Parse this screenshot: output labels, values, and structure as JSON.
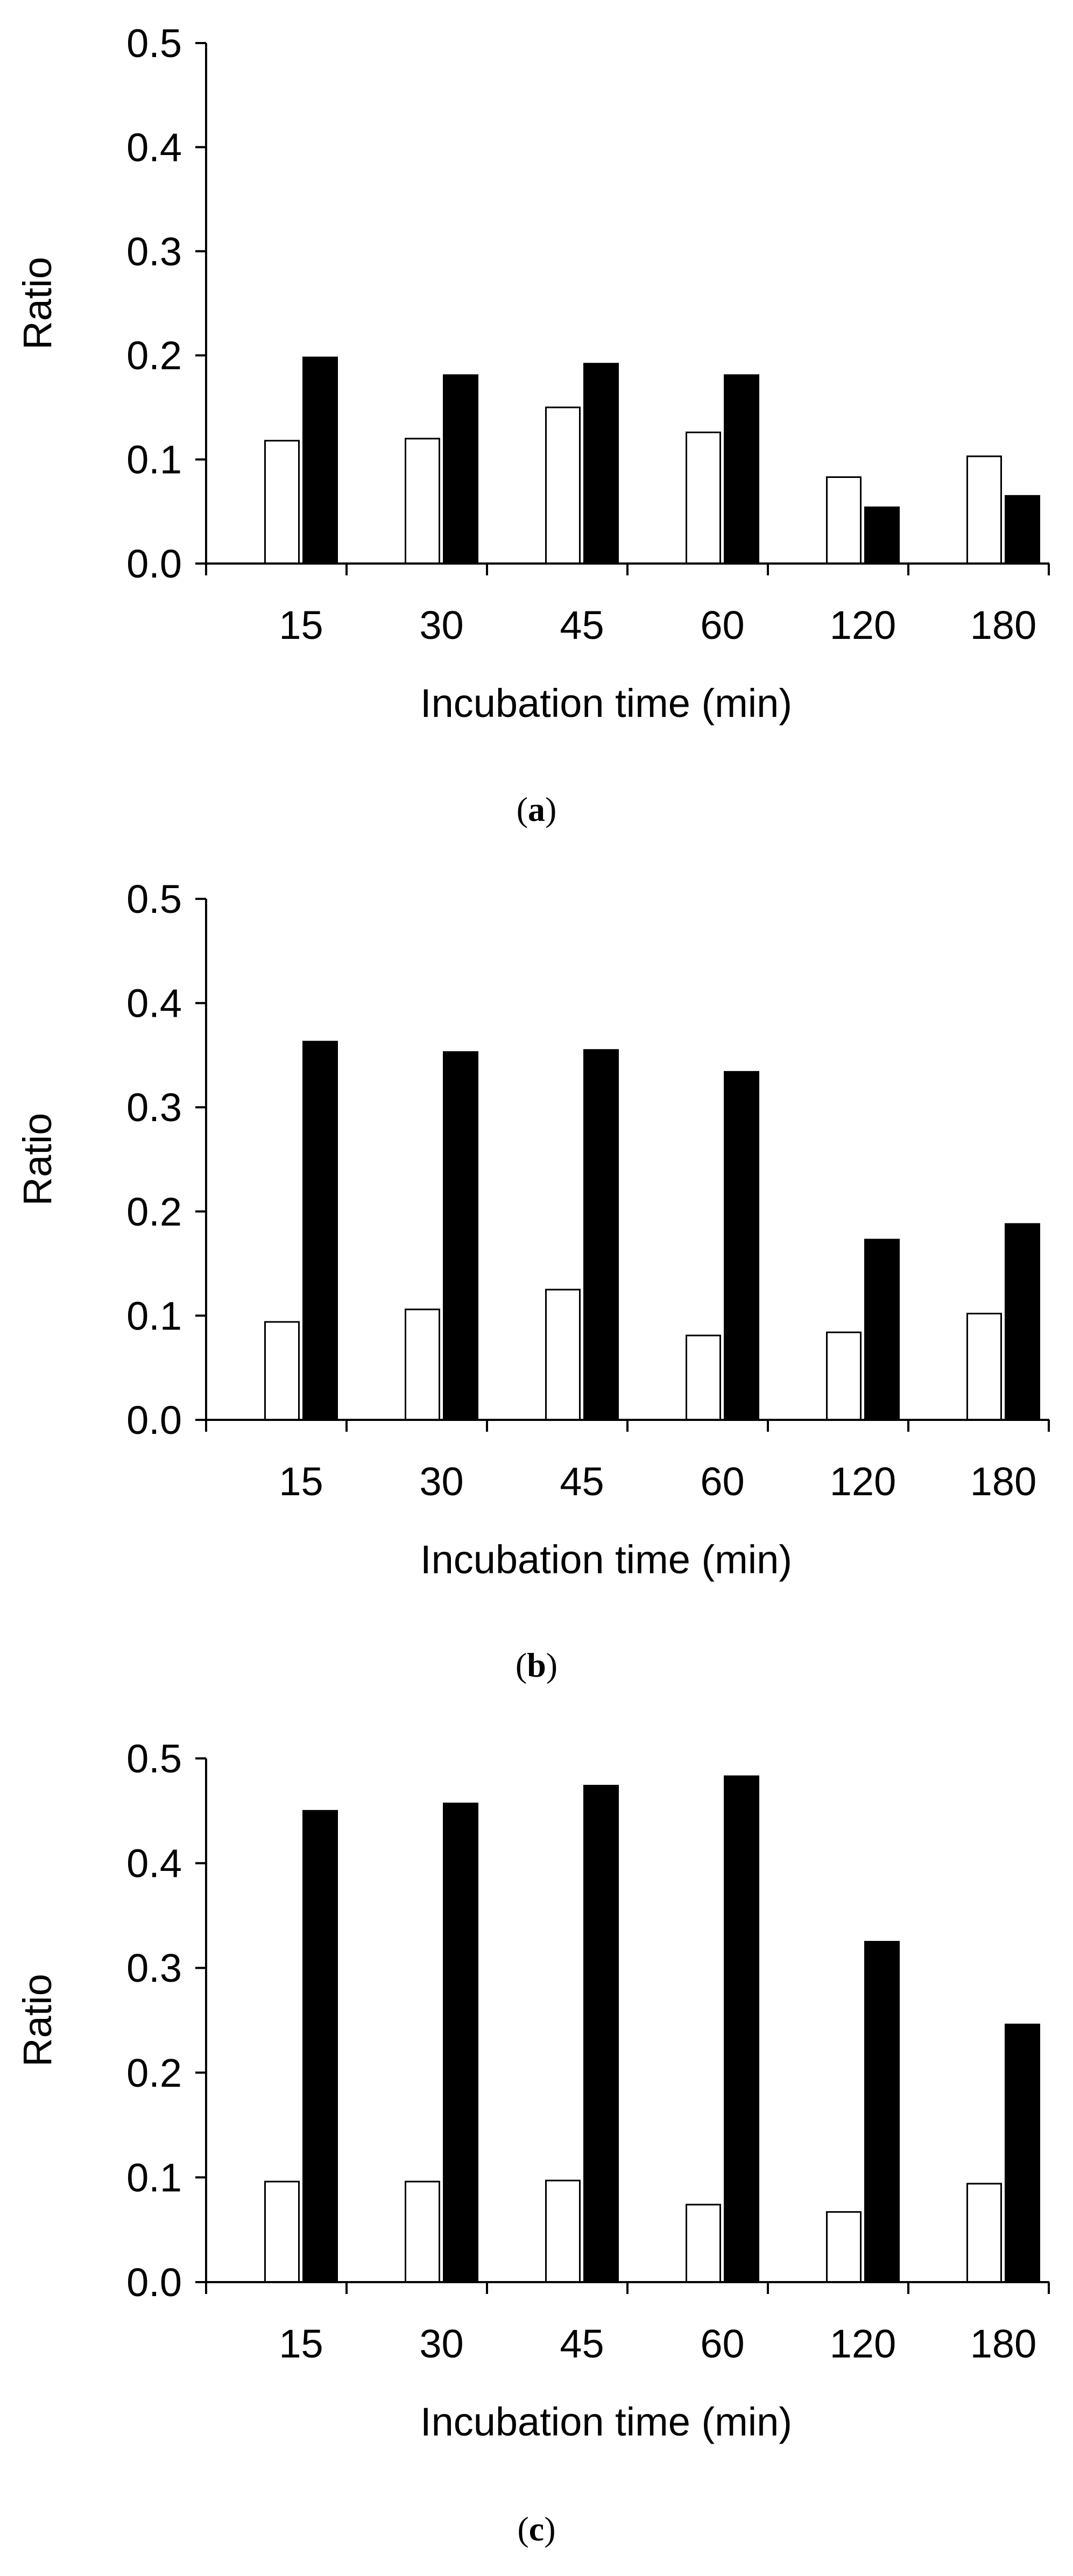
{
  "chart_data": [
    {
      "type": "bar",
      "panel": "a",
      "caption": {
        "open": "(",
        "letter": "a",
        "close": ")"
      },
      "categories": [
        "15",
        "30",
        "45",
        "60",
        "120",
        "180"
      ],
      "series": [
        {
          "name": "open bars",
          "fill": "#ffffff",
          "values": [
            0.118,
            0.12,
            0.15,
            0.126,
            0.083,
            0.103
          ]
        },
        {
          "name": "filled bars",
          "fill": "#000000",
          "values": [
            0.198,
            0.181,
            0.192,
            0.181,
            0.054,
            0.065
          ]
        }
      ],
      "yticks": [
        "0.0",
        "0.1",
        "0.2",
        "0.3",
        "0.4",
        "0.5"
      ],
      "ylim": [
        0,
        0.5
      ],
      "xlabel": "Incubation time (min)",
      "ylabel": "Ratio",
      "grid": false,
      "legend": "none"
    },
    {
      "type": "bar",
      "panel": "b",
      "caption": {
        "open": "(",
        "letter": "b",
        "close": ")"
      },
      "categories": [
        "15",
        "30",
        "45",
        "60",
        "120",
        "180"
      ],
      "series": [
        {
          "name": "open bars",
          "fill": "#ffffff",
          "values": [
            0.094,
            0.106,
            0.125,
            0.081,
            0.084,
            0.102
          ]
        },
        {
          "name": "filled bars",
          "fill": "#000000",
          "values": [
            0.363,
            0.353,
            0.355,
            0.334,
            0.173,
            0.188
          ]
        }
      ],
      "yticks": [
        "0.0",
        "0.1",
        "0.2",
        "0.3",
        "0.4",
        "0.5"
      ],
      "ylim": [
        0,
        0.5
      ],
      "xlabel": "Incubation time (min)",
      "ylabel": "Ratio",
      "grid": false,
      "legend": "none"
    },
    {
      "type": "bar",
      "panel": "c",
      "caption": {
        "open": "(",
        "letter": "c",
        "close": ")"
      },
      "categories": [
        "15",
        "30",
        "45",
        "60",
        "120",
        "180"
      ],
      "series": [
        {
          "name": "open bars",
          "fill": "#ffffff",
          "values": [
            0.096,
            0.096,
            0.097,
            0.074,
            0.067,
            0.094
          ]
        },
        {
          "name": "filled bars",
          "fill": "#000000",
          "values": [
            0.45,
            0.457,
            0.474,
            0.483,
            0.325,
            0.246
          ]
        }
      ],
      "yticks": [
        "0.0",
        "0.1",
        "0.2",
        "0.3",
        "0.4",
        "0.5"
      ],
      "ylim": [
        0,
        0.5
      ],
      "xlabel": "Incubation time (min)",
      "ylabel": "Ratio",
      "grid": false,
      "legend": "none"
    }
  ]
}
